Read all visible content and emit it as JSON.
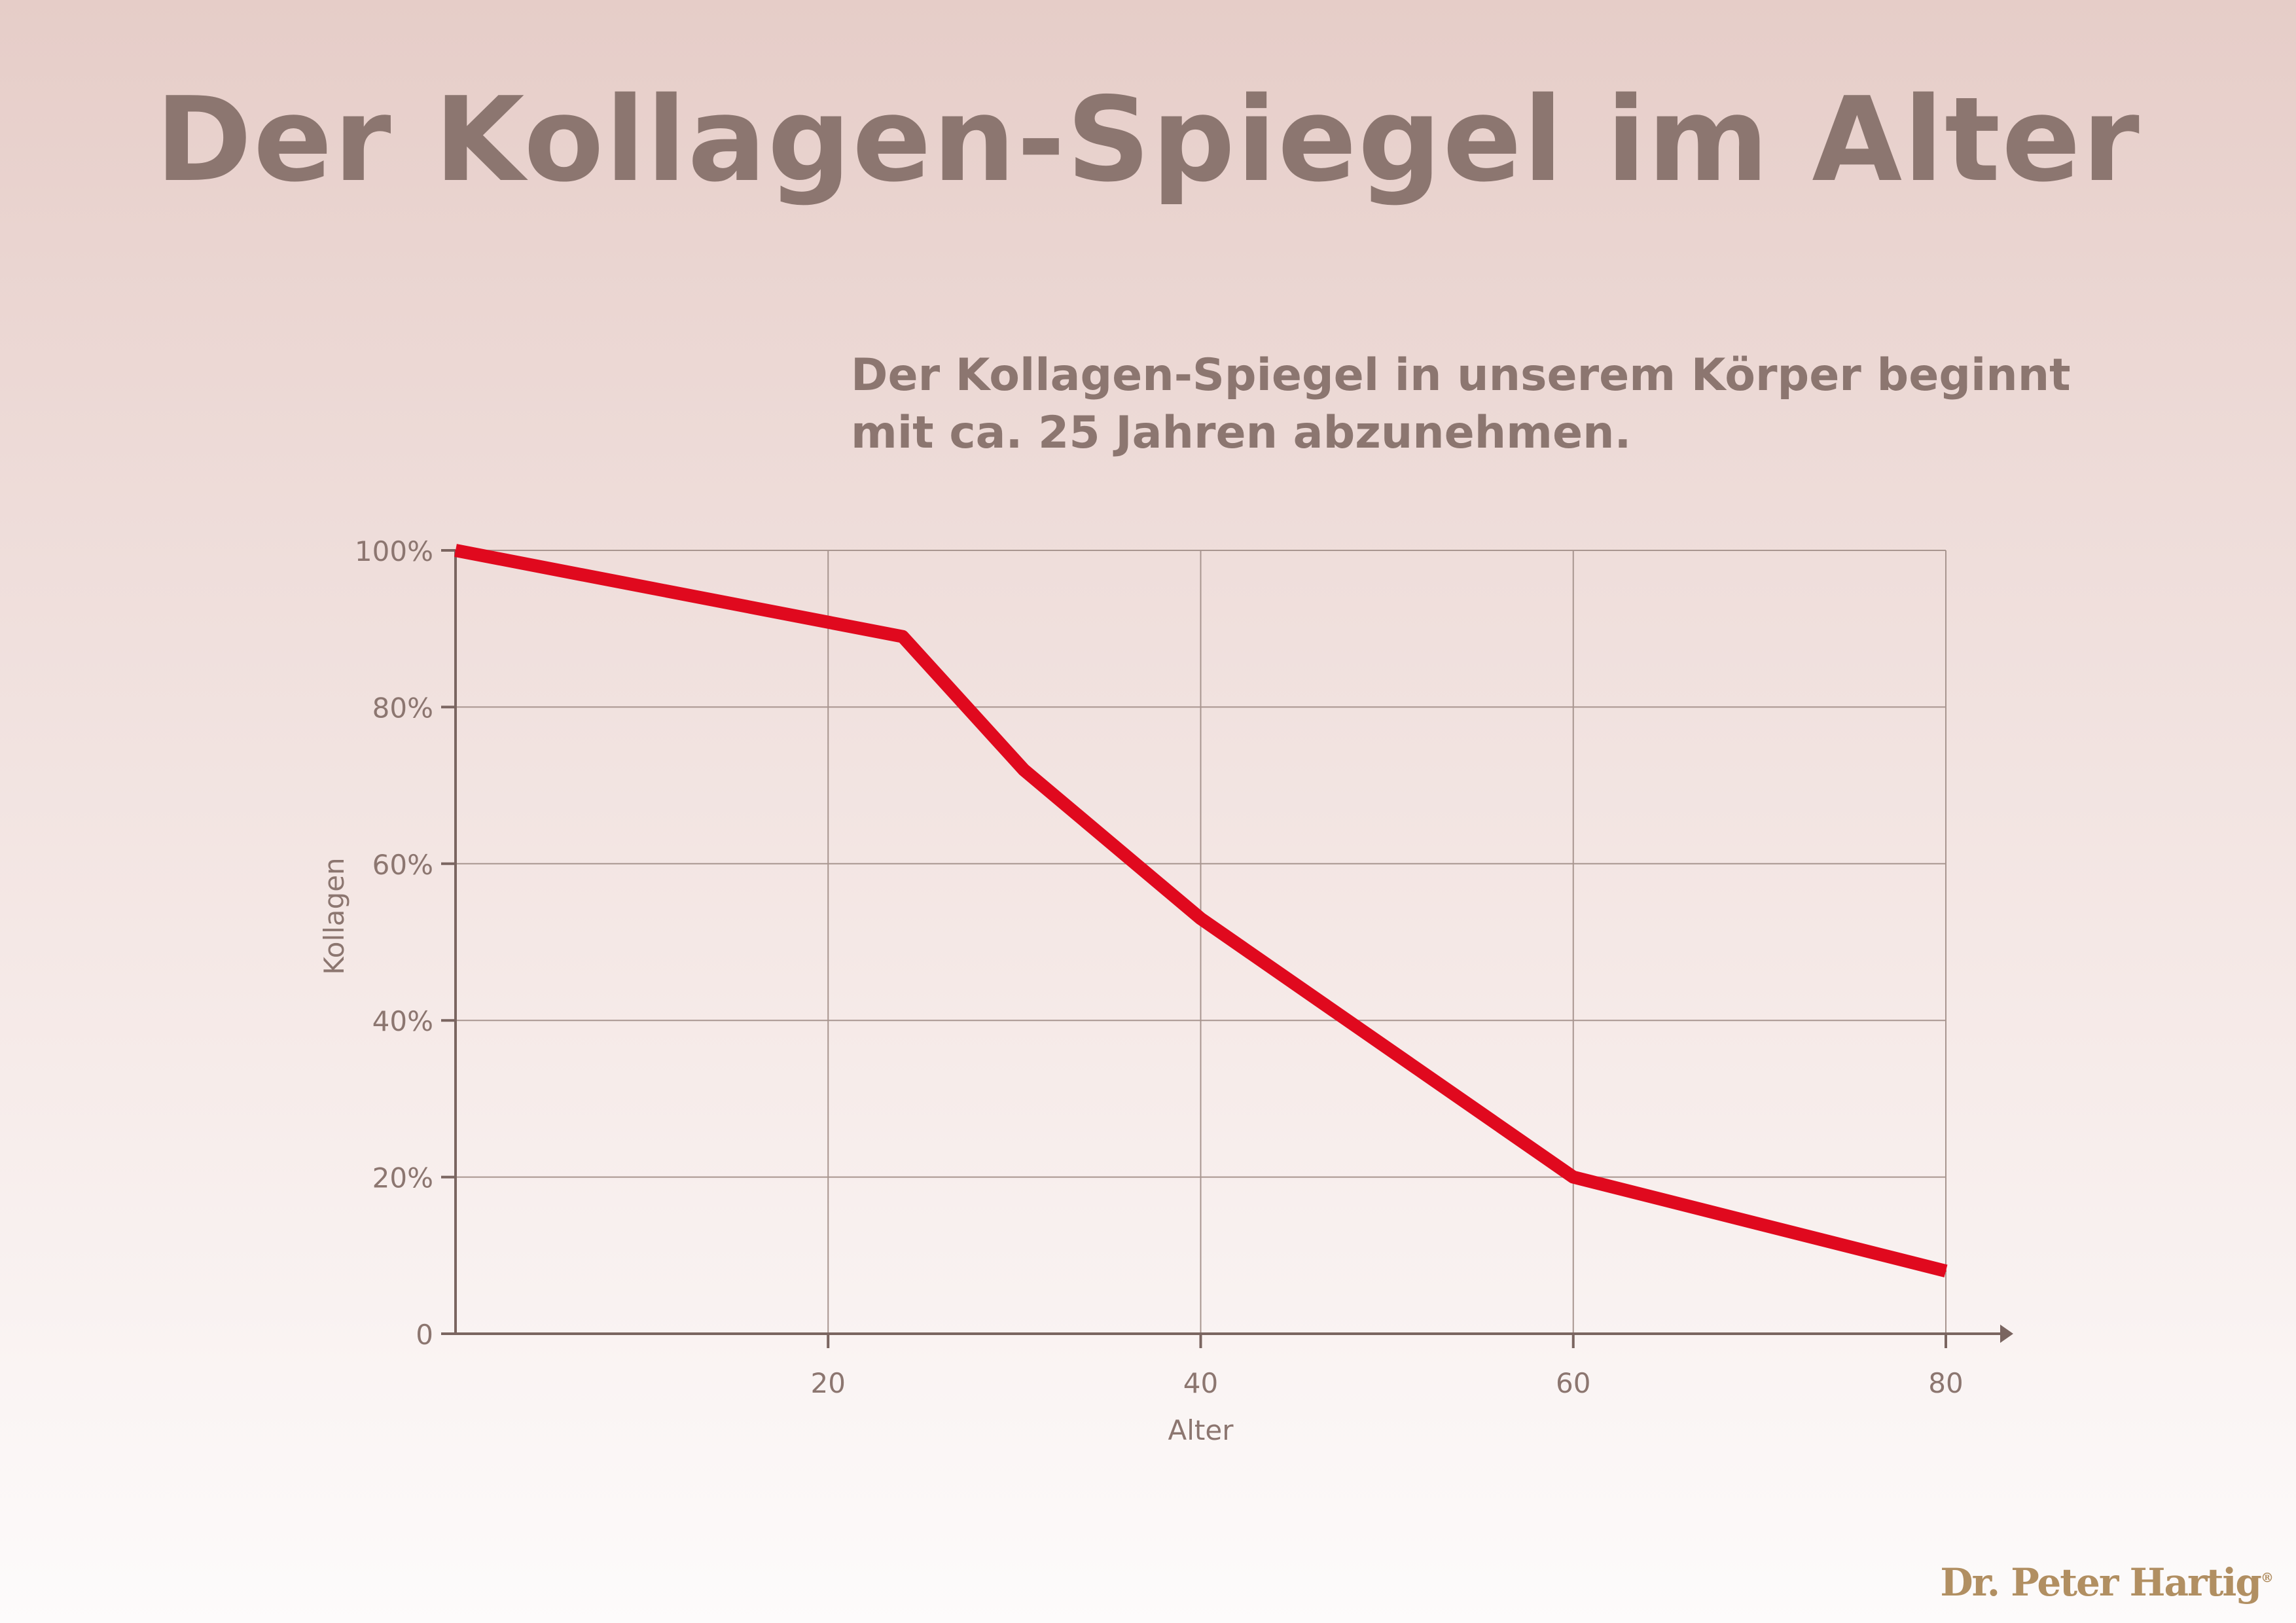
{
  "title": "Der Kollagen-Spiegel im Alter",
  "subtitle_line1": "Der Kollagen-Spiegel in unserem Körper beginnt",
  "subtitle_line2": "mit ca. 25 Jahren abzunehmen.",
  "logo": "Dr. Peter Hartig",
  "colors": {
    "line": "#e0091e",
    "text": "#8c7670",
    "grid": "#a8958f",
    "axis": "#7a6560"
  },
  "chart_data": {
    "type": "line",
    "xlabel": "Alter",
    "ylabel": "Kollagen",
    "xlim": [
      0,
      80
    ],
    "ylim": [
      0,
      100
    ],
    "x_ticks": [
      20,
      40,
      60,
      80
    ],
    "y_ticks": [
      0,
      20,
      40,
      60,
      80,
      100
    ],
    "y_tick_labels": [
      "0",
      "20%",
      "40%",
      "60%",
      "80%",
      "100%"
    ],
    "grid": true,
    "series": [
      {
        "x": [
          0,
          24,
          30.5,
          40,
          60,
          80
        ],
        "y": [
          100,
          89,
          72,
          53,
          20,
          8
        ]
      }
    ]
  }
}
